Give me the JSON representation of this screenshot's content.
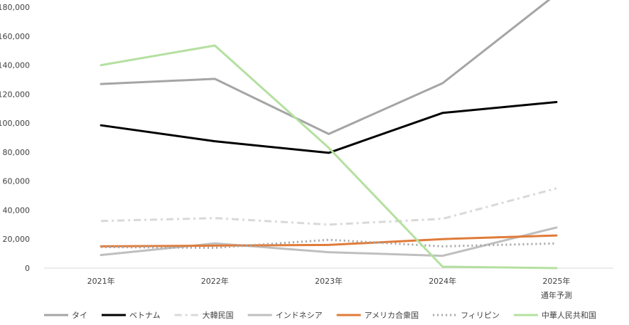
{
  "chart_data": {
    "type": "line",
    "categories": [
      "2021年",
      "2022年",
      "2023年",
      "2024年",
      "2025年"
    ],
    "category_sublabels": [
      "",
      "",
      "",
      "",
      "通年予測"
    ],
    "ylim": [
      0,
      180000
    ],
    "yticks": [
      "0",
      "20,000",
      "40,000",
      "60,000",
      "80,000",
      "100,000",
      "120,000",
      "140,000",
      "160,000",
      "180,000"
    ],
    "grid": false,
    "legend_position": "bottom",
    "series": [
      {
        "name": "タイ",
        "values": [
          127000,
          130500,
          92500,
          127500,
          189000
        ],
        "color": "#a5a5a5",
        "dash": "solid"
      },
      {
        "name": "ベトナム",
        "values": [
          98500,
          87500,
          79500,
          107000,
          114500
        ],
        "color": "#000000",
        "dash": "solid"
      },
      {
        "name": "大韓民国",
        "values": [
          32500,
          34500,
          30000,
          34000,
          55000
        ],
        "color": "#d9d9d9",
        "dash": "dashdot"
      },
      {
        "name": "インドネシア",
        "values": [
          9000,
          17000,
          11000,
          8500,
          28000
        ],
        "color": "#bfbfbf",
        "dash": "solid"
      },
      {
        "name": "アメリカ合衆国",
        "values": [
          15000,
          15500,
          16000,
          20000,
          22500
        ],
        "color": "#e07b39",
        "dash": "solid"
      },
      {
        "name": "フィリピン",
        "values": [
          14500,
          14000,
          19500,
          15000,
          17000
        ],
        "color": "#a5a5a5",
        "dash": "dotted"
      },
      {
        "name": "中華人民共和国",
        "values": [
          140000,
          153500,
          83000,
          1000,
          0
        ],
        "color": "#b4e0a0",
        "dash": "solid"
      }
    ]
  }
}
